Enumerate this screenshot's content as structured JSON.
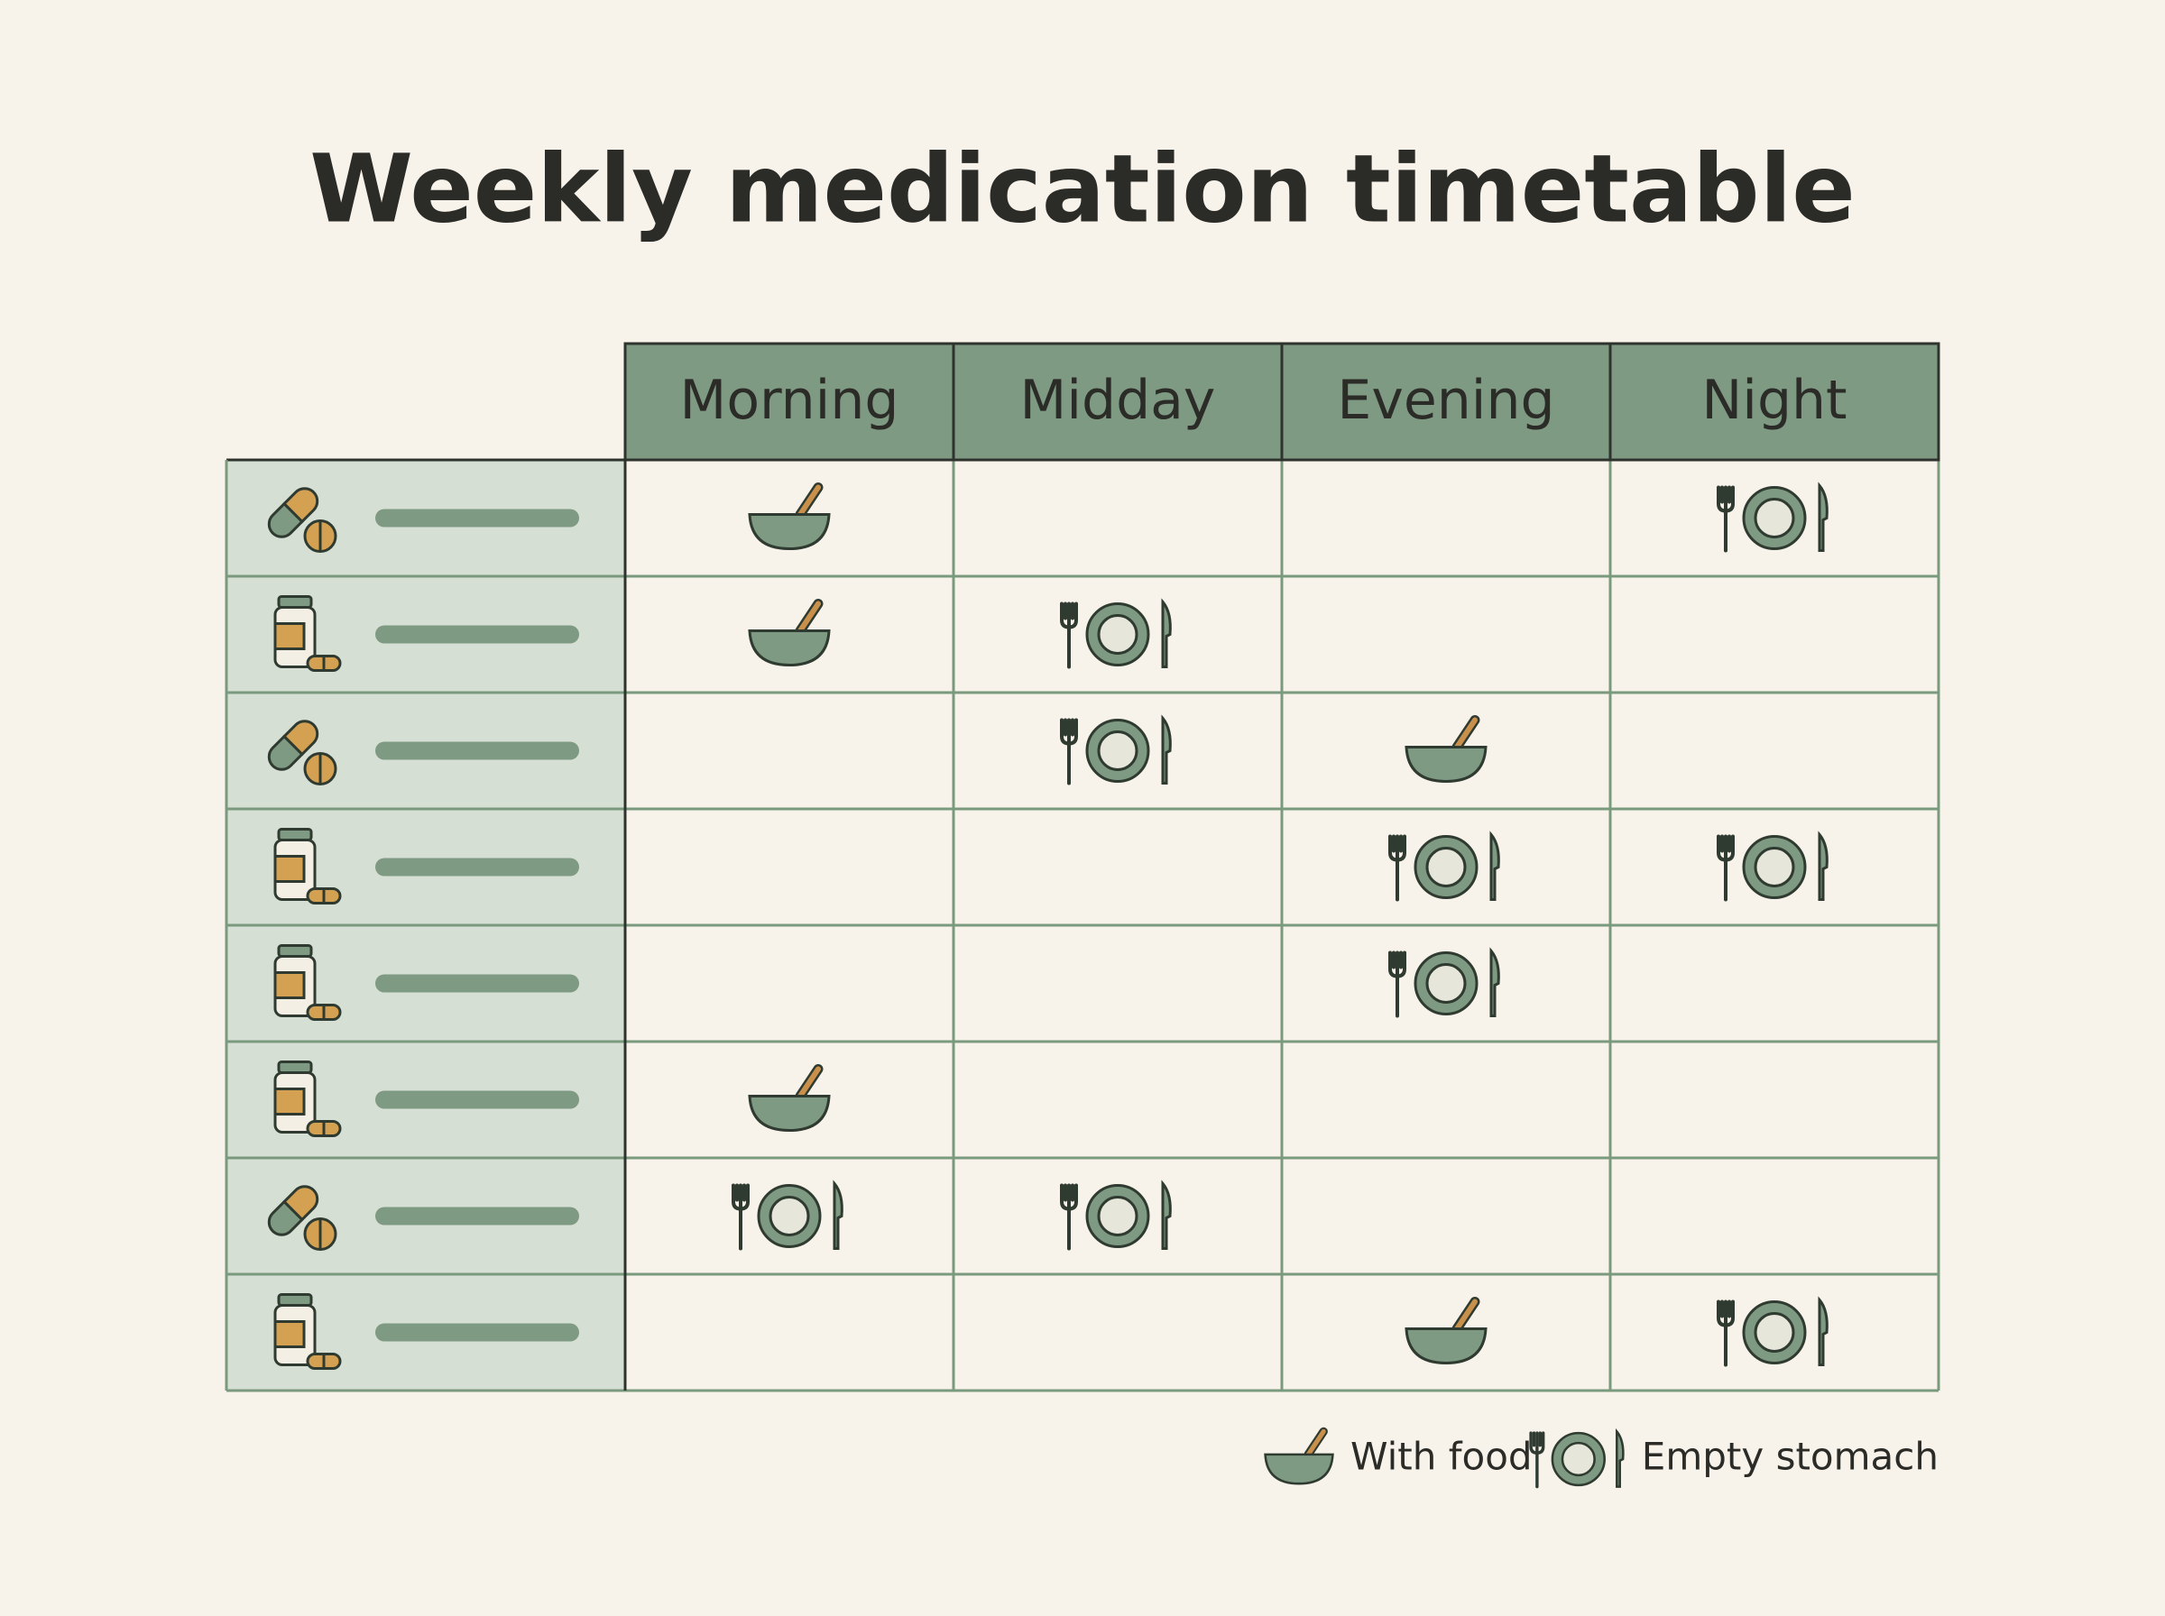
{
  "title": "Weekly medication timetable",
  "table": {
    "columns": [
      "Morning",
      "Midday",
      "Evening",
      "Night"
    ],
    "rows": [
      {
        "icon": "capsule",
        "cells": [
          0,
          null,
          null,
          1
        ]
      },
      {
        "icon": "bottle",
        "cells": [
          0,
          1,
          null,
          null
        ]
      },
      {
        "icon": "capsule",
        "cells": [
          null,
          1,
          0,
          null
        ]
      },
      {
        "icon": "bottle",
        "cells": [
          null,
          null,
          1,
          1
        ]
      },
      {
        "icon": "bottle",
        "cells": [
          null,
          null,
          1,
          null
        ]
      },
      {
        "icon": "bottle",
        "cells": [
          0,
          null,
          null,
          null
        ]
      },
      {
        "icon": "capsule",
        "cells": [
          1,
          1,
          null,
          null
        ]
      },
      {
        "icon": "bottle",
        "cells": [
          null,
          null,
          0,
          1
        ]
      }
    ]
  },
  "legend": [
    {
      "label": "With food"
    },
    {
      "label": "Empty stomach"
    }
  ]
}
